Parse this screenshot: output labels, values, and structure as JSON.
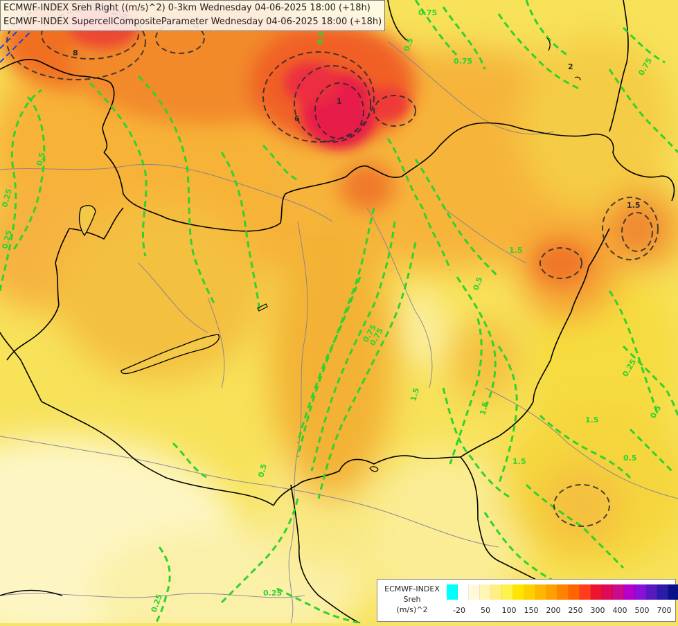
{
  "title": {
    "line1": "ECMWF-INDEX Sreh Right ((m/s)^2) 0-3km Wednesday 04-06-2025 18:00 (+18h)",
    "line2": "ECMWF-INDEX SupercellCompositeParameter Wednesday 04-06-2025 18:00 (+18h)"
  },
  "legend": {
    "line1": "ECMWF-INDEX",
    "line2": "Sreh",
    "line3": "(m/s)^2",
    "ticks": [
      "-20",
      "50",
      "100",
      "150",
      "200",
      "250",
      "300",
      "400",
      "500",
      "700"
    ],
    "colors": [
      "#00ffff",
      "#ffffff",
      "#fff9d9",
      "#fff6b5",
      "#ffef80",
      "#fff24a",
      "#ffe600",
      "#ffd000",
      "#ffb800",
      "#ff9f00",
      "#ff8200",
      "#ff6400",
      "#ff3d1c",
      "#ee1430",
      "#dd0a55",
      "#cc0a90",
      "#b400c8",
      "#8a10d8",
      "#5a18c0",
      "#2a1ca8",
      "#0a1088"
    ]
  },
  "contour_labels": {
    "scp_green": [
      "0.75",
      "0.75",
      "0.5",
      "0.75",
      "0.5",
      "0.75",
      "0.25",
      "0.25",
      "1.5",
      "0.5",
      "0.5",
      "0.75",
      "1.5",
      "1.5",
      "1.5",
      "0.5",
      "1.5",
      "0.25",
      "0.5",
      "0.5",
      "0.25",
      "0.25"
    ],
    "dark": [
      "8",
      "1",
      "6",
      "1.5",
      "2"
    ]
  },
  "colors": {
    "background": "#f6e36a",
    "contour_green": "#2fd22f",
    "contour_dark": "#2a2a2a",
    "border": "#000000",
    "river": "#7a7a9a"
  }
}
